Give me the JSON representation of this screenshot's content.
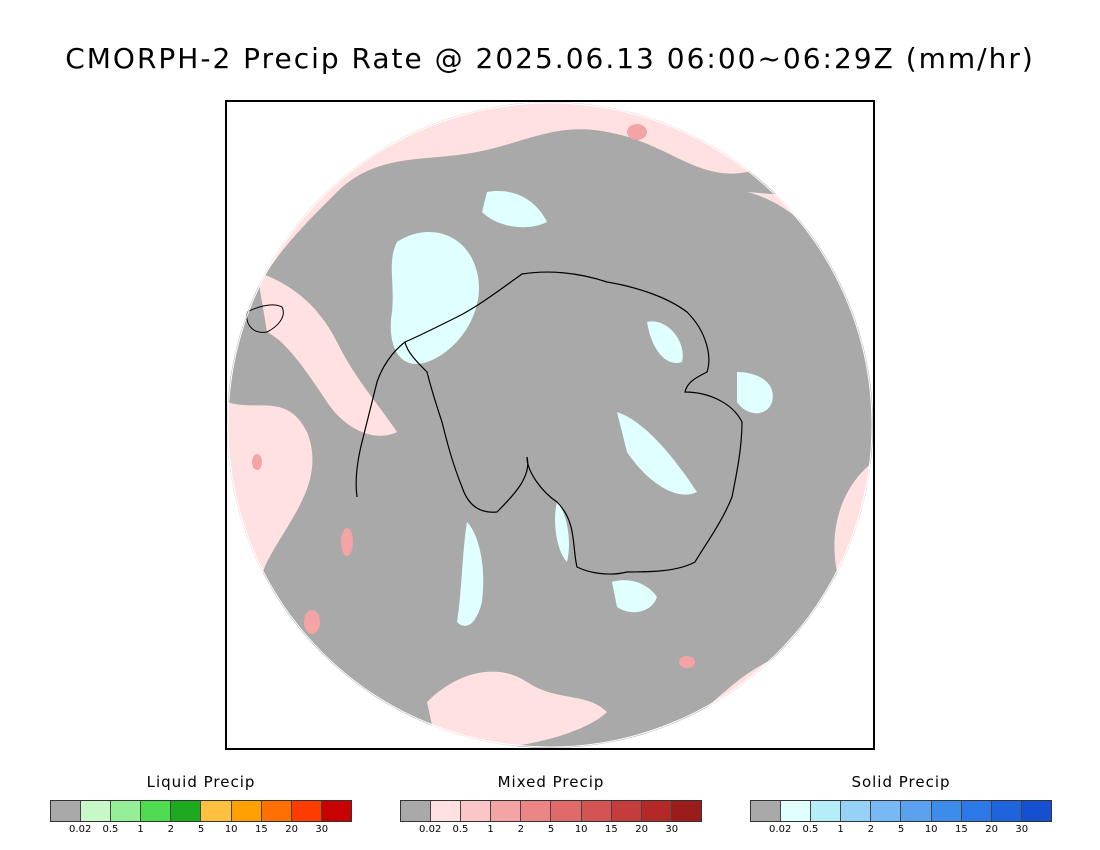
{
  "title": "CMORPH-2 Precip Rate @ 2025.06.13 06:00~06:29Z (mm/hr)",
  "map": {
    "projection": "south polar stereographic",
    "region": "Antarctica / Southern Ocean",
    "background_color": "#a9a9a9",
    "colors": {
      "no_precip": "#a9a9a9",
      "mixed_light": "#ffe1e1",
      "mixed_mod": "#f4a4a4",
      "mixed_heavy": "#e07070",
      "solid_light": "#e0ffff",
      "liquid_light": "#b4f0b4",
      "coast": "#000000"
    }
  },
  "legends": [
    {
      "title": "Liquid Precip",
      "colors": [
        "#a9a9a9",
        "#c8f8c8",
        "#96ee96",
        "#50dc50",
        "#1eaa1e",
        "#ffc040",
        "#ffa000",
        "#ff7000",
        "#ff3c00",
        "#c80000"
      ],
      "ticks": [
        "0.02",
        "0.5",
        "1",
        "2",
        "5",
        "10",
        "15",
        "20",
        "30"
      ]
    },
    {
      "title": "Mixed Precip",
      "colors": [
        "#a9a9a9",
        "#ffe1e1",
        "#fcc6c6",
        "#f4a4a4",
        "#ec8686",
        "#e06a6a",
        "#d45454",
        "#c43c3c",
        "#b42828",
        "#9c1c1c"
      ],
      "ticks": [
        "0.02",
        "0.5",
        "1",
        "2",
        "5",
        "10",
        "15",
        "20",
        "30"
      ]
    },
    {
      "title": "Solid Precip",
      "colors": [
        "#a9a9a9",
        "#e0ffff",
        "#b4eef8",
        "#96d2f8",
        "#78b8f6",
        "#5aa2f0",
        "#3c8ceb",
        "#2c78e6",
        "#1e64dc",
        "#1450d0"
      ],
      "ticks": [
        "0.02",
        "0.5",
        "1",
        "2",
        "5",
        "10",
        "15",
        "20",
        "30"
      ]
    }
  ]
}
